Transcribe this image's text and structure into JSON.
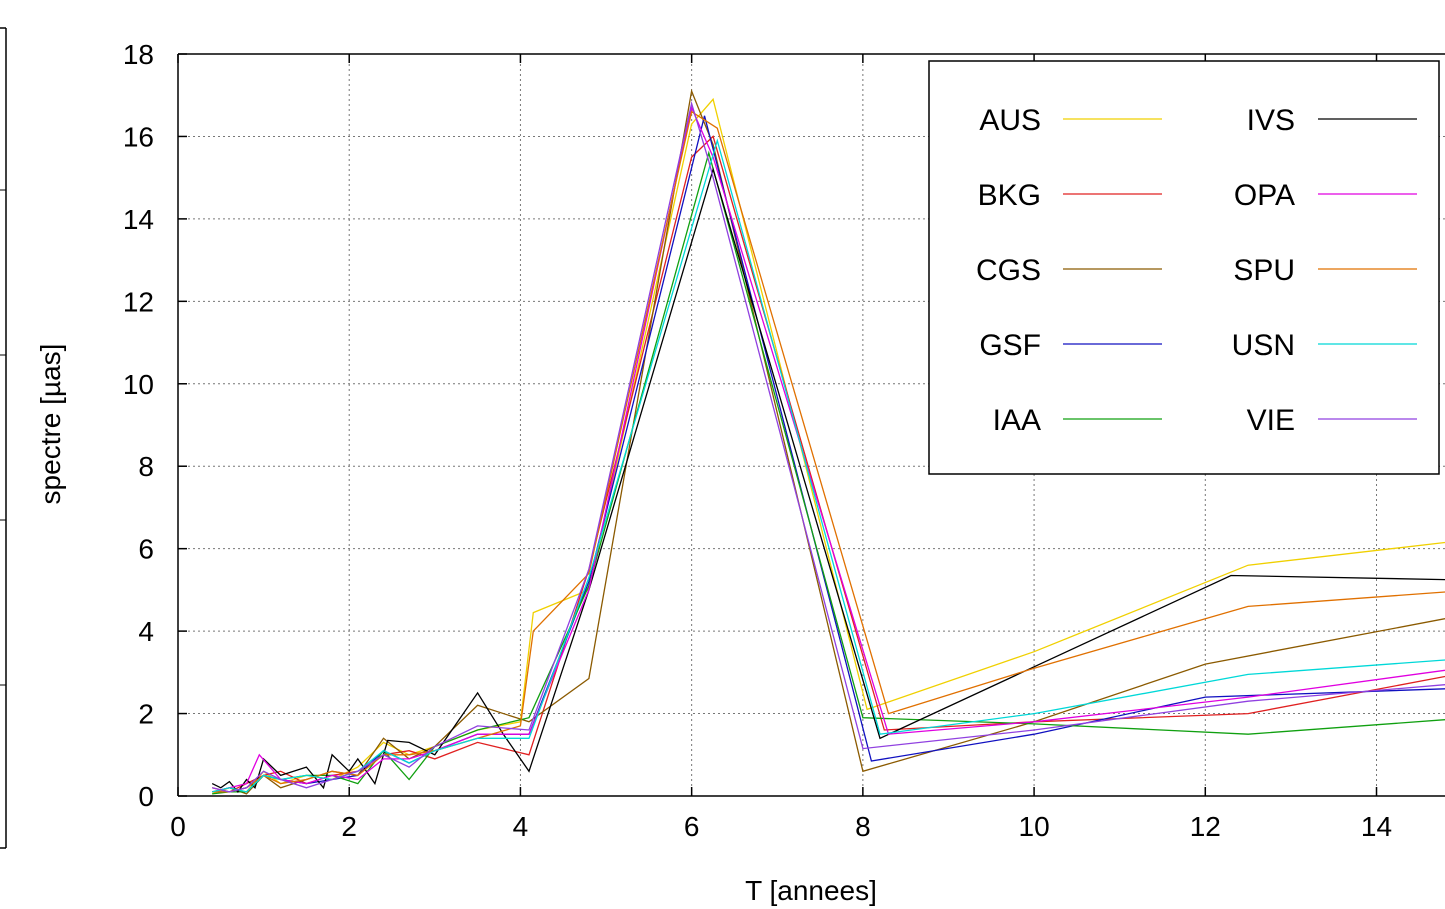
{
  "chart_data": {
    "type": "line",
    "title": "",
    "xlabel": "T [annees]",
    "ylabel": "spectre [µas]",
    "xlim": [
      0,
      14.8
    ],
    "ylim": [
      0,
      18
    ],
    "xticks": [
      0,
      2,
      4,
      6,
      8,
      10,
      12,
      14
    ],
    "yticks": [
      0,
      2,
      4,
      6,
      8,
      10,
      12,
      14,
      16,
      18
    ],
    "grid": true,
    "legend": {
      "placement": "top-right",
      "columns": 2
    },
    "series": [
      {
        "name": "AUS",
        "color": "#f0d000",
        "x": [
          0.4,
          0.6,
          0.8,
          1.0,
          1.2,
          1.5,
          1.8,
          2.1,
          2.4,
          2.7,
          3.0,
          3.5,
          4.0,
          4.15,
          4.8,
          6.0,
          6.25,
          8.05,
          10.0,
          12.5,
          14.8
        ],
        "y": [
          0.05,
          0.2,
          0.1,
          0.6,
          0.3,
          0.5,
          0.4,
          0.7,
          1.3,
          1.0,
          1.2,
          1.6,
          1.8,
          4.45,
          5.0,
          16.3,
          16.9,
          2.1,
          3.5,
          5.6,
          6.15
        ]
      },
      {
        "name": "BKG",
        "color": "#e02020",
        "x": [
          0.4,
          0.6,
          0.8,
          1.0,
          1.2,
          1.5,
          1.8,
          2.1,
          2.4,
          2.7,
          3.0,
          3.5,
          4.1,
          4.8,
          6.0,
          6.25,
          8.25,
          10.0,
          12.5,
          14.8
        ],
        "y": [
          0.2,
          0.1,
          0.3,
          0.5,
          0.6,
          0.3,
          0.5,
          0.6,
          1.0,
          1.1,
          0.9,
          1.3,
          1.0,
          5.5,
          15.5,
          16.0,
          1.6,
          1.8,
          2.0,
          2.9
        ]
      },
      {
        "name": "CGS",
        "color": "#8b5a00",
        "x": [
          0.4,
          0.6,
          0.8,
          1.0,
          1.2,
          1.5,
          1.8,
          2.1,
          2.4,
          2.7,
          3.0,
          3.5,
          4.1,
          4.8,
          6.0,
          6.25,
          8.0,
          10.0,
          12.0,
          14.8
        ],
        "y": [
          0.1,
          0.2,
          0.05,
          0.5,
          0.2,
          0.4,
          0.6,
          0.5,
          1.4,
          0.9,
          1.2,
          2.2,
          1.8,
          2.85,
          17.1,
          15.8,
          0.6,
          1.8,
          3.2,
          4.3
        ]
      },
      {
        "name": "GSF",
        "color": "#1010c0",
        "x": [
          0.4,
          0.6,
          0.8,
          1.0,
          1.2,
          1.5,
          1.8,
          2.1,
          2.4,
          2.7,
          3.0,
          3.5,
          4.1,
          4.8,
          6.15,
          8.1,
          10.0,
          12.0,
          14.8
        ],
        "y": [
          0.1,
          0.1,
          0.2,
          0.5,
          0.4,
          0.3,
          0.4,
          0.5,
          1.1,
          0.8,
          1.1,
          1.5,
          1.5,
          5.2,
          16.5,
          0.85,
          1.5,
          2.4,
          2.6
        ]
      },
      {
        "name": "IAA",
        "color": "#10a010",
        "x": [
          0.4,
          0.6,
          0.8,
          1.0,
          1.2,
          1.5,
          1.8,
          2.1,
          2.4,
          2.7,
          3.0,
          3.5,
          4.1,
          4.8,
          6.2,
          8.0,
          10.0,
          12.5,
          14.8
        ],
        "y": [
          0.05,
          0.1,
          0.1,
          0.5,
          0.4,
          0.5,
          0.5,
          0.3,
          1.1,
          0.4,
          1.2,
          1.6,
          1.9,
          5.1,
          15.6,
          1.9,
          1.75,
          1.5,
          1.85
        ]
      },
      {
        "name": "IVS",
        "color": "#000000",
        "x": [
          0.4,
          0.5,
          0.6,
          0.7,
          0.8,
          0.9,
          1.0,
          1.2,
          1.5,
          1.7,
          1.8,
          2.0,
          2.1,
          2.3,
          2.45,
          2.7,
          3.0,
          3.5,
          3.8,
          4.1,
          4.8,
          6.25,
          8.2,
          12.3,
          14.8
        ],
        "y": [
          0.3,
          0.2,
          0.35,
          0.1,
          0.4,
          0.2,
          0.9,
          0.5,
          0.7,
          0.2,
          1.0,
          0.6,
          0.9,
          0.3,
          1.35,
          1.3,
          1.0,
          2.5,
          1.5,
          0.6,
          5.0,
          15.2,
          1.4,
          5.35,
          5.25
        ]
      },
      {
        "name": "OPA",
        "color": "#e000e0",
        "x": [
          0.4,
          0.6,
          0.8,
          0.95,
          1.2,
          1.5,
          1.8,
          2.1,
          2.4,
          2.7,
          3.0,
          3.5,
          4.1,
          4.8,
          6.0,
          6.25,
          8.3,
          10.0,
          12.5,
          14.8
        ],
        "y": [
          0.1,
          0.2,
          0.3,
          1.0,
          0.4,
          0.3,
          0.5,
          0.4,
          0.9,
          0.9,
          1.1,
          1.5,
          1.5,
          5.0,
          16.7,
          15.5,
          1.5,
          1.8,
          2.4,
          3.05
        ]
      },
      {
        "name": "SPU",
        "color": "#e07000",
        "x": [
          0.4,
          0.6,
          0.8,
          1.0,
          1.2,
          1.5,
          1.8,
          2.1,
          2.4,
          2.7,
          3.0,
          3.5,
          4.0,
          4.15,
          4.8,
          6.0,
          6.3,
          8.3,
          10.0,
          12.5,
          14.8
        ],
        "y": [
          0.1,
          0.1,
          0.2,
          0.5,
          0.3,
          0.4,
          0.6,
          0.5,
          1.0,
          1.0,
          1.1,
          1.4,
          1.7,
          4.0,
          5.4,
          16.6,
          16.2,
          2.0,
          3.1,
          4.6,
          4.95
        ]
      },
      {
        "name": "USN",
        "color": "#00d8d8",
        "x": [
          0.4,
          0.6,
          0.8,
          1.0,
          1.2,
          1.5,
          1.8,
          2.1,
          2.4,
          2.7,
          3.0,
          3.5,
          4.1,
          4.8,
          6.3,
          8.2,
          10.0,
          12.5,
          14.8
        ],
        "y": [
          0.1,
          0.2,
          0.1,
          0.5,
          0.4,
          0.5,
          0.4,
          0.6,
          1.1,
          0.8,
          1.1,
          1.4,
          1.4,
          5.3,
          15.9,
          1.5,
          2.0,
          2.95,
          3.3
        ]
      },
      {
        "name": "VIE",
        "color": "#9040e0",
        "x": [
          0.4,
          0.6,
          0.8,
          1.0,
          1.2,
          1.5,
          1.8,
          2.1,
          2.4,
          2.7,
          3.0,
          3.5,
          4.1,
          4.8,
          6.0,
          6.2,
          8.0,
          10.0,
          12.5,
          14.8
        ],
        "y": [
          0.2,
          0.1,
          0.2,
          0.6,
          0.4,
          0.2,
          0.4,
          0.6,
          1.0,
          0.7,
          1.2,
          1.7,
          1.6,
          5.5,
          16.8,
          15.4,
          1.15,
          1.6,
          2.3,
          2.7
        ]
      }
    ]
  }
}
